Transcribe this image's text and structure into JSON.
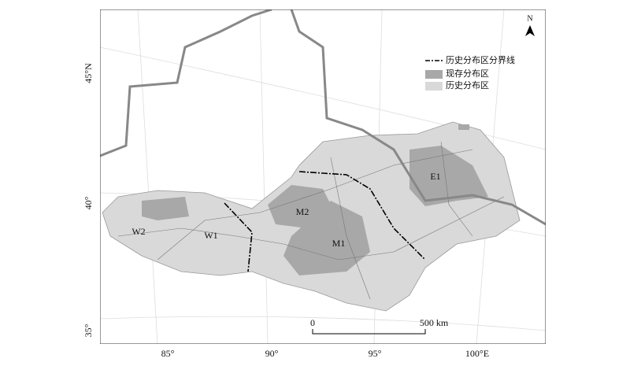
{
  "north_label": "N",
  "legend": {
    "items": [
      "历史分布区分界线",
      "现存分布区",
      "历史分布区"
    ]
  },
  "lat_labels": [
    "45°N",
    "40°",
    "35°"
  ],
  "lon_labels": [
    "85°",
    "90°",
    "95°",
    "100°E"
  ],
  "regions": [
    "W2",
    "W1",
    "M2",
    "M1",
    "E1"
  ],
  "scale_bar": {
    "start": "0",
    "end": "500 km"
  }
}
